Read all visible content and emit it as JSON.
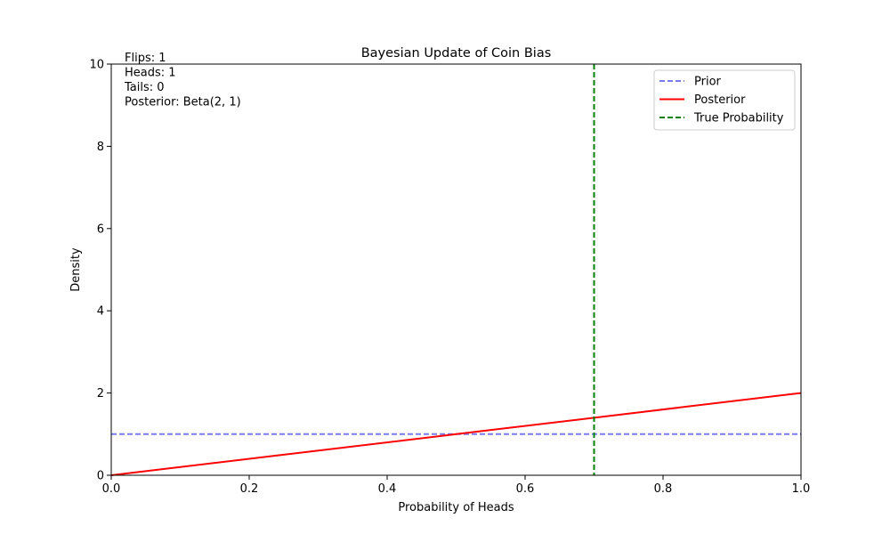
{
  "chart_data": {
    "type": "line",
    "title": "Bayesian Update of Coin Bias",
    "xlabel": "Probability of Heads",
    "ylabel": "Density",
    "xlim": [
      0,
      1
    ],
    "ylim": [
      0,
      10
    ],
    "grid": false,
    "legend_position": "top-right",
    "xticks": [
      0,
      0.2,
      0.4,
      0.6,
      0.8,
      1
    ],
    "xtick_labels": [
      "0.0",
      "0.2",
      "0.4",
      "0.6",
      "0.8",
      "1.0"
    ],
    "yticks": [
      0,
      2,
      4,
      6,
      8,
      10
    ],
    "ytick_labels": [
      "0",
      "2",
      "4",
      "6",
      "8",
      "10"
    ],
    "series": [
      {
        "name": "Prior",
        "color": "#7b7bf0",
        "style": "dashed",
        "x": [
          0,
          0.25,
          0.5,
          0.75,
          1
        ],
        "y": [
          1,
          1,
          1,
          1,
          1
        ]
      },
      {
        "name": "Posterior",
        "color": "#ff0000",
        "style": "solid",
        "x": [
          0,
          0.25,
          0.5,
          0.75,
          1
        ],
        "y": [
          0,
          0.5,
          1,
          1.5,
          2
        ]
      },
      {
        "name": "True Probability",
        "color": "#008000",
        "style": "dashed",
        "vertical_line_x": 0.7
      }
    ],
    "annotation_lines": [
      "Flips: 1",
      "Heads: 1",
      "Tails: 0",
      "Posterior: Beta(2, 1)"
    ]
  }
}
